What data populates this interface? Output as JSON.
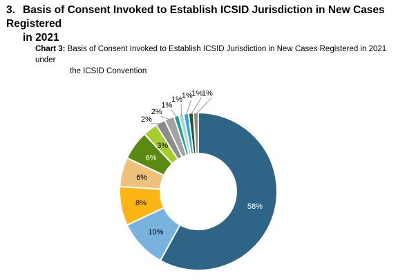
{
  "heading": {
    "number": "3.",
    "line1": "Basis of Consent Invoked to Establish ICSID Jurisdiction in New Cases Registered",
    "line2": "in 2021"
  },
  "chart_caption": {
    "prefix": "Chart 3:",
    "line1": "Basis of Consent Invoked to Establish ICSID Jurisdiction in New Cases Registered in 2021 under",
    "line2": "the ICSID Convention"
  },
  "chart_data": {
    "type": "pie",
    "donut": true,
    "title": "Basis of Consent Invoked to Establish ICSID Jurisdiction in New Cases Registered in 2021 under the ICSID Convention",
    "legend": "none",
    "values": [
      58,
      10,
      8,
      6,
      6,
      3,
      2,
      2,
      1,
      1,
      1,
      1,
      1
    ],
    "labels": [
      "58%",
      "10%",
      "8%",
      "6%",
      "6%",
      "3%",
      "2%",
      "2%",
      "1%",
      "1%",
      "1%",
      "1%",
      "1%"
    ],
    "colors": [
      "#2E6587",
      "#78B3DD",
      "#FDB515",
      "#EFC27C",
      "#5A8A12",
      "#A5CE2C",
      "#8C8C8C",
      "#A3A3A3",
      "#1D9E91",
      "#A8D6D0",
      "#29A9DF",
      "#2F4F38",
      "#8A8A8A"
    ]
  }
}
